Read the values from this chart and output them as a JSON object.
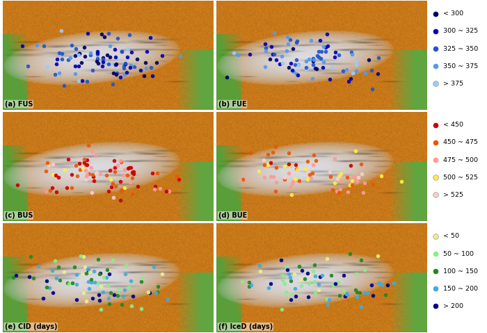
{
  "panels": [
    {
      "label": "(a) FUS",
      "row": 0,
      "col": 0,
      "colorset": "blue1"
    },
    {
      "label": "(b) FUE",
      "row": 0,
      "col": 1,
      "colorset": "blue2"
    },
    {
      "label": "(c) BUS",
      "row": 1,
      "col": 0,
      "colorset": "red1"
    },
    {
      "label": "(d) BUE",
      "row": 1,
      "col": 1,
      "colorset": "red2"
    },
    {
      "label": "(e) CID (days)",
      "row": 2,
      "col": 0,
      "colorset": "green1"
    },
    {
      "label": "(f) IceD (days)",
      "row": 2,
      "col": 1,
      "colorset": "green2"
    }
  ],
  "colorsets": {
    "blue1": {
      "colors": [
        "#00005F",
        "#0000BB",
        "#2255CC",
        "#5599EE",
        "#99CCFF"
      ],
      "probs": [
        0.2,
        0.35,
        0.25,
        0.12,
        0.08
      ],
      "n_dots": 90
    },
    "blue2": {
      "colors": [
        "#00005F",
        "#0000BB",
        "#2255CC",
        "#5599EE",
        "#99CCFF"
      ],
      "probs": [
        0.08,
        0.22,
        0.35,
        0.22,
        0.13
      ],
      "n_dots": 80
    },
    "red1": {
      "colors": [
        "#CC0000",
        "#EE5500",
        "#FF9999",
        "#FFEE44",
        "#FFCCCC"
      ],
      "probs": [
        0.38,
        0.3,
        0.18,
        0.07,
        0.07
      ],
      "n_dots": 85
    },
    "red2": {
      "colors": [
        "#CC0000",
        "#EE5500",
        "#FF9999",
        "#FFEE44",
        "#FFCCCC"
      ],
      "probs": [
        0.08,
        0.28,
        0.32,
        0.22,
        0.1
      ],
      "n_dots": 75
    },
    "green1": {
      "colors": [
        "#EEEE88",
        "#88EE88",
        "#228822",
        "#44AADD",
        "#000088"
      ],
      "probs": [
        0.1,
        0.22,
        0.28,
        0.22,
        0.18
      ],
      "n_dots": 85
    },
    "green2": {
      "colors": [
        "#EEEE88",
        "#88EE88",
        "#228822",
        "#44AADD",
        "#000088"
      ],
      "probs": [
        0.06,
        0.18,
        0.22,
        0.28,
        0.26
      ],
      "n_dots": 75
    }
  },
  "legend1": {
    "colors": [
      "#00005F",
      "#0000BB",
      "#2255CC",
      "#5599EE",
      "#99CCFF"
    ],
    "labels": [
      "< 300",
      "300 ~ 325",
      "325 ~ 350",
      "350 ~ 375",
      "> 375"
    ]
  },
  "legend2": {
    "colors": [
      "#CC0000",
      "#EE5500",
      "#FF9999",
      "#FFEE44",
      "#FFCCCC"
    ],
    "labels": [
      "< 450",
      "450 ~ 475",
      "475 ~ 500",
      "500 ~ 525",
      "> 525"
    ]
  },
  "legend3": {
    "colors": [
      "#EEEE88",
      "#88EE88",
      "#228822",
      "#44AADD",
      "#000088"
    ],
    "labels": [
      "< 50",
      "50 ~ 100",
      "100 ~ 150",
      "150 ~ 200",
      "> 200"
    ]
  },
  "topo": {
    "outer_color": "#C87800",
    "orange_hi": "#E09030",
    "brown_mid": "#A06030",
    "plateau_grey": "#C8C8C8",
    "green_low": "#70AA50",
    "ridge_color": "#906040"
  }
}
